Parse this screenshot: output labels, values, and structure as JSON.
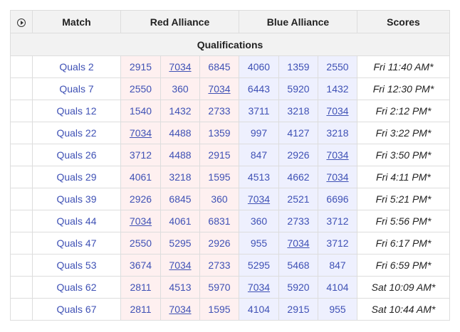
{
  "header": {
    "video_icon": "play-circle-icon",
    "match": "Match",
    "red": "Red Alliance",
    "blue": "Blue Alliance",
    "scores": "Scores"
  },
  "section": {
    "label": "Qualifications"
  },
  "team_number": "7034",
  "colors": {
    "red_bg": "#fef0f0",
    "blue_bg": "#eef0fe",
    "link": "#3f51b5",
    "header_bg": "#f2f2f2"
  },
  "matches": [
    {
      "match": "Quals 2",
      "red": [
        "2915",
        "7034",
        "6845"
      ],
      "blue": [
        "4060",
        "1359",
        "2550"
      ],
      "score": "Fri 11:40 AM*"
    },
    {
      "match": "Quals 7",
      "red": [
        "2550",
        "360",
        "7034"
      ],
      "blue": [
        "6443",
        "5920",
        "1432"
      ],
      "score": "Fri 12:30 PM*"
    },
    {
      "match": "Quals 12",
      "red": [
        "1540",
        "1432",
        "2733"
      ],
      "blue": [
        "3711",
        "3218",
        "7034"
      ],
      "score": "Fri 2:12 PM*"
    },
    {
      "match": "Quals 22",
      "red": [
        "7034",
        "4488",
        "1359"
      ],
      "blue": [
        "997",
        "4127",
        "3218"
      ],
      "score": "Fri 3:22 PM*"
    },
    {
      "match": "Quals 26",
      "red": [
        "3712",
        "4488",
        "2915"
      ],
      "blue": [
        "847",
        "2926",
        "7034"
      ],
      "score": "Fri 3:50 PM*"
    },
    {
      "match": "Quals 29",
      "red": [
        "4061",
        "3218",
        "1595"
      ],
      "blue": [
        "4513",
        "4662",
        "7034"
      ],
      "score": "Fri 4:11 PM*"
    },
    {
      "match": "Quals 39",
      "red": [
        "2926",
        "6845",
        "360"
      ],
      "blue": [
        "7034",
        "2521",
        "6696"
      ],
      "score": "Fri 5:21 PM*"
    },
    {
      "match": "Quals 44",
      "red": [
        "7034",
        "4061",
        "6831"
      ],
      "blue": [
        "360",
        "2733",
        "3712"
      ],
      "score": "Fri 5:56 PM*"
    },
    {
      "match": "Quals 47",
      "red": [
        "2550",
        "5295",
        "2926"
      ],
      "blue": [
        "955",
        "7034",
        "3712"
      ],
      "score": "Fri 6:17 PM*"
    },
    {
      "match": "Quals 53",
      "red": [
        "3674",
        "7034",
        "2733"
      ],
      "blue": [
        "5295",
        "5468",
        "847"
      ],
      "score": "Fri 6:59 PM*"
    },
    {
      "match": "Quals 62",
      "red": [
        "2811",
        "4513",
        "5970"
      ],
      "blue": [
        "7034",
        "5920",
        "4104"
      ],
      "score": "Sat 10:09 AM*"
    },
    {
      "match": "Quals 67",
      "red": [
        "2811",
        "7034",
        "1595"
      ],
      "blue": [
        "4104",
        "2915",
        "955"
      ],
      "score": "Sat 10:44 AM*"
    }
  ]
}
